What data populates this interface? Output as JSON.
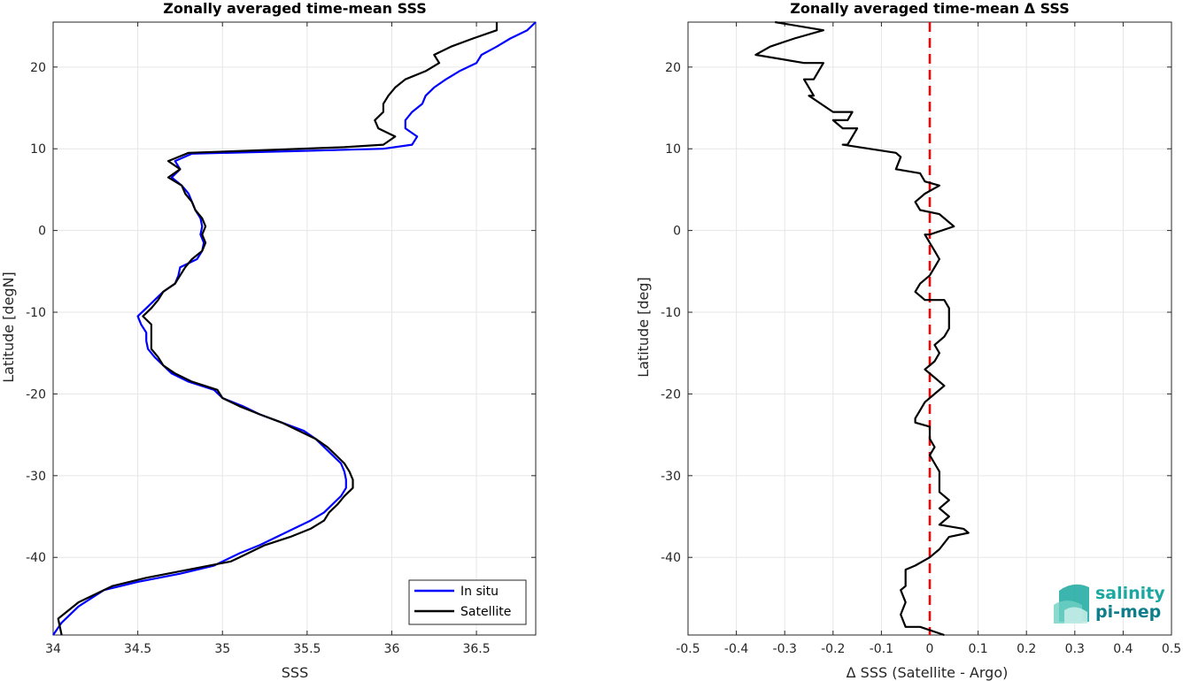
{
  "chart_data": [
    {
      "type": "line",
      "title": "Zonally averaged time-mean SSS",
      "xlabel": "SSS",
      "ylabel": "Latitude [degN]",
      "xlim": [
        34,
        36.85
      ],
      "ylim": [
        -49.5,
        25.5
      ],
      "xticks": [
        34,
        34.5,
        35,
        35.5,
        36,
        36.5
      ],
      "yticks": [
        -40,
        -30,
        -20,
        -10,
        0,
        10,
        20
      ],
      "grid": true,
      "legend_position": "bottom-right",
      "series": [
        {
          "name": "In situ",
          "color": "#0000ff",
          "points": [
            [
              36.85,
              25.5
            ],
            [
              36.8,
              24.5
            ],
            [
              36.7,
              23.5
            ],
            [
              36.62,
              22.5
            ],
            [
              36.53,
              21.5
            ],
            [
              36.5,
              20.5
            ],
            [
              36.4,
              19.5
            ],
            [
              36.32,
              18.5
            ],
            [
              36.25,
              17.5
            ],
            [
              36.2,
              16.5
            ],
            [
              36.18,
              15.5
            ],
            [
              36.12,
              14.5
            ],
            [
              36.08,
              13.5
            ],
            [
              36.08,
              12.5
            ],
            [
              36.15,
              11.5
            ],
            [
              36.12,
              10.5
            ],
            [
              35.95,
              10.0
            ],
            [
              35.4,
              9.7
            ],
            [
              34.82,
              9.4
            ],
            [
              34.72,
              8.5
            ],
            [
              34.75,
              7.5
            ],
            [
              34.7,
              6.5
            ],
            [
              34.76,
              5.5
            ],
            [
              34.8,
              4.5
            ],
            [
              34.82,
              3.5
            ],
            [
              34.84,
              2.5
            ],
            [
              34.87,
              1.5
            ],
            [
              34.88,
              0.5
            ],
            [
              34.87,
              -0.5
            ],
            [
              34.89,
              -1.5
            ],
            [
              34.88,
              -2.5
            ],
            [
              34.85,
              -3.5
            ],
            [
              34.75,
              -4.5
            ],
            [
              34.74,
              -5.5
            ],
            [
              34.72,
              -6.5
            ],
            [
              34.65,
              -7.5
            ],
            [
              34.6,
              -8.5
            ],
            [
              34.55,
              -9.5
            ],
            [
              34.5,
              -10.5
            ],
            [
              34.52,
              -11.5
            ],
            [
              34.55,
              -12.5
            ],
            [
              34.55,
              -13.5
            ],
            [
              34.56,
              -14.5
            ],
            [
              34.6,
              -15.5
            ],
            [
              34.65,
              -16.5
            ],
            [
              34.7,
              -17.5
            ],
            [
              34.8,
              -18.5
            ],
            [
              34.95,
              -19.5
            ],
            [
              35.0,
              -20.5
            ],
            [
              35.12,
              -21.5
            ],
            [
              35.22,
              -22.5
            ],
            [
              35.35,
              -23.5
            ],
            [
              35.48,
              -24.5
            ],
            [
              35.55,
              -25.5
            ],
            [
              35.6,
              -26.5
            ],
            [
              35.65,
              -27.5
            ],
            [
              35.7,
              -28.5
            ],
            [
              35.72,
              -29.5
            ],
            [
              35.73,
              -30.5
            ],
            [
              35.73,
              -31.5
            ],
            [
              35.7,
              -32.5
            ],
            [
              35.65,
              -33.5
            ],
            [
              35.6,
              -34.5
            ],
            [
              35.52,
              -35.5
            ],
            [
              35.42,
              -36.5
            ],
            [
              35.32,
              -37.5
            ],
            [
              35.22,
              -38.5
            ],
            [
              35.1,
              -39.5
            ],
            [
              34.95,
              -41.0
            ],
            [
              34.75,
              -42.0
            ],
            [
              34.5,
              -43.0
            ],
            [
              34.3,
              -44.0
            ],
            [
              34.15,
              -46.0
            ],
            [
              34.05,
              -48.0
            ],
            [
              34.0,
              -49.5
            ]
          ]
        },
        {
          "name": "Satellite",
          "color": "#000000",
          "points": [
            [
              36.62,
              25.5
            ],
            [
              36.62,
              24.5
            ],
            [
              36.48,
              23.5
            ],
            [
              36.35,
              22.5
            ],
            [
              36.25,
              21.5
            ],
            [
              36.28,
              20.5
            ],
            [
              36.2,
              19.5
            ],
            [
              36.08,
              18.5
            ],
            [
              36.02,
              17.5
            ],
            [
              35.98,
              16.5
            ],
            [
              35.95,
              15.5
            ],
            [
              35.95,
              14.5
            ],
            [
              35.9,
              13.5
            ],
            [
              35.92,
              12.5
            ],
            [
              36.02,
              11.5
            ],
            [
              35.95,
              10.5
            ],
            [
              35.72,
              10.2
            ],
            [
              35.2,
              9.8
            ],
            [
              34.8,
              9.5
            ],
            [
              34.68,
              8.5
            ],
            [
              34.75,
              7.5
            ],
            [
              34.68,
              6.5
            ],
            [
              34.76,
              5.5
            ],
            [
              34.78,
              4.5
            ],
            [
              34.82,
              3.5
            ],
            [
              34.84,
              2.5
            ],
            [
              34.88,
              1.5
            ],
            [
              34.9,
              0.5
            ],
            [
              34.88,
              -0.5
            ],
            [
              34.9,
              -1.5
            ],
            [
              34.88,
              -2.5
            ],
            [
              34.82,
              -3.5
            ],
            [
              34.78,
              -4.5
            ],
            [
              34.75,
              -5.5
            ],
            [
              34.72,
              -6.5
            ],
            [
              34.65,
              -7.5
            ],
            [
              34.62,
              -8.5
            ],
            [
              34.58,
              -9.5
            ],
            [
              34.53,
              -10.5
            ],
            [
              34.58,
              -11.5
            ],
            [
              34.58,
              -12.5
            ],
            [
              34.58,
              -13.5
            ],
            [
              34.58,
              -14.5
            ],
            [
              34.62,
              -15.5
            ],
            [
              34.65,
              -16.5
            ],
            [
              34.72,
              -17.5
            ],
            [
              34.82,
              -18.5
            ],
            [
              34.97,
              -19.5
            ],
            [
              35.0,
              -20.5
            ],
            [
              35.1,
              -21.5
            ],
            [
              35.22,
              -22.5
            ],
            [
              35.35,
              -23.5
            ],
            [
              35.45,
              -24.5
            ],
            [
              35.55,
              -25.5
            ],
            [
              35.62,
              -26.5
            ],
            [
              35.67,
              -27.5
            ],
            [
              35.72,
              -28.5
            ],
            [
              35.75,
              -29.5
            ],
            [
              35.77,
              -30.5
            ],
            [
              35.77,
              -31.5
            ],
            [
              35.72,
              -32.5
            ],
            [
              35.68,
              -33.5
            ],
            [
              35.63,
              -34.5
            ],
            [
              35.6,
              -35.5
            ],
            [
              35.52,
              -36.5
            ],
            [
              35.4,
              -37.5
            ],
            [
              35.25,
              -38.5
            ],
            [
              35.1,
              -40.0
            ],
            [
              35.05,
              -40.5
            ],
            [
              34.8,
              -41.5
            ],
            [
              34.55,
              -42.5
            ],
            [
              34.35,
              -43.5
            ],
            [
              34.15,
              -45.5
            ],
            [
              34.03,
              -47.5
            ],
            [
              34.05,
              -49.5
            ]
          ]
        }
      ]
    },
    {
      "type": "line",
      "title": "Zonally averaged time-mean Δ SSS",
      "xlabel": "Δ SSS (Satellite - Argo)",
      "ylabel": "Latitude [deg]",
      "xlim": [
        -0.5,
        0.5
      ],
      "ylim": [
        -49.5,
        25.5
      ],
      "xticks": [
        -0.5,
        -0.4,
        -0.3,
        -0.2,
        -0.1,
        0,
        0.1,
        0.2,
        0.3,
        0.4,
        0.5
      ],
      "yticks": [
        -40,
        -30,
        -20,
        -10,
        0,
        10,
        20
      ],
      "grid": true,
      "reference_line": {
        "x": 0,
        "color": "#ff0000",
        "style": "dashed"
      },
      "series": [
        {
          "color": "#000000",
          "points": [
            [
              -0.32,
              25.5
            ],
            [
              -0.22,
              24.5
            ],
            [
              -0.28,
              23.5
            ],
            [
              -0.33,
              22.5
            ],
            [
              -0.36,
              21.5
            ],
            [
              -0.26,
              20.5
            ],
            [
              -0.22,
              20.5
            ],
            [
              -0.24,
              18.5
            ],
            [
              -0.26,
              18.5
            ],
            [
              -0.24,
              16.5
            ],
            [
              -0.25,
              16.5
            ],
            [
              -0.2,
              14.5
            ],
            [
              -0.16,
              14.5
            ],
            [
              -0.17,
              13.5
            ],
            [
              -0.2,
              13.5
            ],
            [
              -0.18,
              12.5
            ],
            [
              -0.15,
              12.5
            ],
            [
              -0.17,
              10.5
            ],
            [
              -0.18,
              10.5
            ],
            [
              -0.07,
              9.5
            ],
            [
              -0.06,
              9.0
            ],
            [
              -0.07,
              7.5
            ],
            [
              -0.02,
              7.0
            ],
            [
              -0.01,
              6.0
            ],
            [
              0.02,
              5.5
            ],
            [
              -0.01,
              4.5
            ],
            [
              -0.03,
              3.5
            ],
            [
              -0.02,
              2.5
            ],
            [
              0.02,
              2.0
            ],
            [
              0.05,
              0.5
            ],
            [
              0.0,
              -0.5
            ],
            [
              -0.01,
              -0.5
            ],
            [
              0.0,
              -1.5
            ],
            [
              0.01,
              -2.5
            ],
            [
              0.02,
              -3.5
            ],
            [
              0.01,
              -4.5
            ],
            [
              0.0,
              -5.5
            ],
            [
              -0.02,
              -6.5
            ],
            [
              -0.03,
              -7.5
            ],
            [
              -0.01,
              -8.5
            ],
            [
              0.03,
              -8.5
            ],
            [
              0.04,
              -9.5
            ],
            [
              0.04,
              -10.5
            ],
            [
              0.04,
              -12.0
            ],
            [
              0.03,
              -13.0
            ],
            [
              0.01,
              -14.0
            ],
            [
              0.02,
              -15.0
            ],
            [
              0.01,
              -16.0
            ],
            [
              -0.01,
              -17.0
            ],
            [
              0.01,
              -18.0
            ],
            [
              0.03,
              -19.0
            ],
            [
              0.01,
              -20.0
            ],
            [
              -0.01,
              -21.0
            ],
            [
              -0.02,
              -22.0
            ],
            [
              -0.03,
              -23.0
            ],
            [
              -0.03,
              -23.5
            ],
            [
              0.0,
              -24.0
            ],
            [
              0.0,
              -25.5
            ],
            [
              0.01,
              -26.5
            ],
            [
              0.0,
              -27.5
            ],
            [
              0.01,
              -28.5
            ],
            [
              0.02,
              -29.5
            ],
            [
              0.02,
              -31.0
            ],
            [
              0.02,
              -32.0
            ],
            [
              0.04,
              -33.0
            ],
            [
              0.02,
              -34.0
            ],
            [
              0.04,
              -35.0
            ],
            [
              0.02,
              -36.0
            ],
            [
              0.07,
              -36.5
            ],
            [
              0.08,
              -37.0
            ],
            [
              0.04,
              -37.5
            ],
            [
              0.02,
              -39.0
            ],
            [
              0.0,
              -40.0
            ],
            [
              -0.03,
              -41.0
            ],
            [
              -0.05,
              -41.5
            ],
            [
              -0.05,
              -43.5
            ],
            [
              -0.06,
              -44.0
            ],
            [
              -0.05,
              -45.5
            ],
            [
              -0.06,
              -47.0
            ],
            [
              -0.05,
              -48.5
            ],
            [
              -0.02,
              -48.5
            ],
            [
              0.03,
              -49.5
            ]
          ]
        }
      ]
    }
  ],
  "logo": {
    "line1": "salinity",
    "line2": "pi-mep"
  }
}
